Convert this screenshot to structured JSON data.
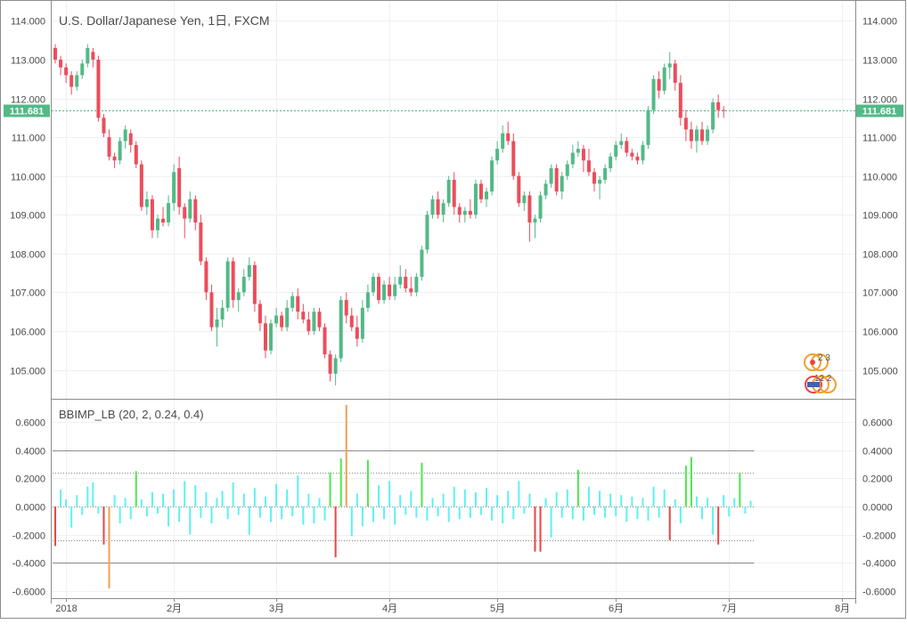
{
  "chart_data": [
    {
      "type": "candlestick",
      "title": "U.S. Dollar/Japanese Yen, 1日, FXCM",
      "ylim": [
        104.3,
        114.4
      ],
      "y_ticks": [
        "114.000",
        "113.000",
        "112.000",
        "111.000",
        "110.000",
        "109.000",
        "108.000",
        "107.000",
        "106.000",
        "105.000"
      ],
      "y_tick_values": [
        114,
        113,
        112,
        111,
        110,
        109,
        108,
        107,
        106,
        105
      ],
      "x_tick_labels": [
        "2018",
        "2月",
        "3月",
        "4月",
        "5月",
        "6月",
        "7月",
        "8月"
      ],
      "x_tick_bar_index": [
        2,
        22,
        41,
        62,
        82,
        104,
        125,
        146
      ],
      "last_price": 111.681,
      "last_price_label": "111.681",
      "colors": {
        "up": "#53b987",
        "down": "#eb4d5c",
        "price_line": "#53b987"
      },
      "series": [
        {
          "o": 113.3,
          "h": 113.4,
          "l": 112.9,
          "c": 113.0
        },
        {
          "o": 113.0,
          "h": 113.1,
          "l": 112.6,
          "c": 112.8
        },
        {
          "o": 112.8,
          "h": 112.9,
          "l": 112.4,
          "c": 112.6
        },
        {
          "o": 112.6,
          "h": 112.7,
          "l": 112.1,
          "c": 112.3
        },
        {
          "o": 112.3,
          "h": 112.7,
          "l": 112.2,
          "c": 112.6
        },
        {
          "o": 112.6,
          "h": 113.0,
          "l": 112.5,
          "c": 112.9
        },
        {
          "o": 112.9,
          "h": 113.4,
          "l": 112.8,
          "c": 113.3
        },
        {
          "o": 113.2,
          "h": 113.3,
          "l": 112.8,
          "c": 113.0
        },
        {
          "o": 113.0,
          "h": 113.1,
          "l": 111.4,
          "c": 111.5
        },
        {
          "o": 111.5,
          "h": 111.6,
          "l": 111.0,
          "c": 111.1
        },
        {
          "o": 111.0,
          "h": 111.2,
          "l": 110.4,
          "c": 110.5
        },
        {
          "o": 110.5,
          "h": 110.6,
          "l": 110.2,
          "c": 110.4
        },
        {
          "o": 110.4,
          "h": 111.0,
          "l": 110.3,
          "c": 110.9
        },
        {
          "o": 110.9,
          "h": 111.3,
          "l": 110.7,
          "c": 111.2
        },
        {
          "o": 111.1,
          "h": 111.2,
          "l": 110.6,
          "c": 110.8
        },
        {
          "o": 110.8,
          "h": 110.9,
          "l": 110.2,
          "c": 110.3
        },
        {
          "o": 110.3,
          "h": 110.4,
          "l": 109.1,
          "c": 109.2
        },
        {
          "o": 109.2,
          "h": 109.6,
          "l": 109.0,
          "c": 109.4
        },
        {
          "o": 109.4,
          "h": 109.5,
          "l": 108.4,
          "c": 108.6
        },
        {
          "o": 108.6,
          "h": 109.0,
          "l": 108.4,
          "c": 108.9
        },
        {
          "o": 108.9,
          "h": 109.2,
          "l": 108.7,
          "c": 108.8
        },
        {
          "o": 108.8,
          "h": 109.5,
          "l": 108.7,
          "c": 109.3
        },
        {
          "o": 109.3,
          "h": 110.3,
          "l": 109.1,
          "c": 110.1
        },
        {
          "o": 110.2,
          "h": 110.5,
          "l": 109.0,
          "c": 109.2
        },
        {
          "o": 109.2,
          "h": 109.3,
          "l": 108.4,
          "c": 108.9
        },
        {
          "o": 108.9,
          "h": 109.6,
          "l": 108.8,
          "c": 109.4
        },
        {
          "o": 109.4,
          "h": 109.5,
          "l": 108.6,
          "c": 108.8
        },
        {
          "o": 108.8,
          "h": 109.0,
          "l": 107.7,
          "c": 107.8
        },
        {
          "o": 107.8,
          "h": 107.9,
          "l": 106.8,
          "c": 107.0
        },
        {
          "o": 107.0,
          "h": 107.2,
          "l": 106.0,
          "c": 106.1
        },
        {
          "o": 106.1,
          "h": 106.6,
          "l": 105.6,
          "c": 106.3
        },
        {
          "o": 106.3,
          "h": 106.8,
          "l": 106.1,
          "c": 106.6
        },
        {
          "o": 106.6,
          "h": 107.9,
          "l": 106.5,
          "c": 107.8
        },
        {
          "o": 107.8,
          "h": 107.9,
          "l": 106.6,
          "c": 106.8
        },
        {
          "o": 106.8,
          "h": 107.1,
          "l": 106.5,
          "c": 107.0
        },
        {
          "o": 107.0,
          "h": 107.6,
          "l": 106.9,
          "c": 107.4
        },
        {
          "o": 107.4,
          "h": 107.9,
          "l": 107.3,
          "c": 107.7
        },
        {
          "o": 107.7,
          "h": 107.8,
          "l": 106.5,
          "c": 106.7
        },
        {
          "o": 106.7,
          "h": 106.8,
          "l": 106.0,
          "c": 106.2
        },
        {
          "o": 106.2,
          "h": 106.4,
          "l": 105.3,
          "c": 105.5
        },
        {
          "o": 105.5,
          "h": 106.3,
          "l": 105.4,
          "c": 106.2
        },
        {
          "o": 106.2,
          "h": 106.6,
          "l": 106.1,
          "c": 106.4
        },
        {
          "o": 106.4,
          "h": 106.5,
          "l": 106.0,
          "c": 106.1
        },
        {
          "o": 106.1,
          "h": 106.8,
          "l": 106.0,
          "c": 106.6
        },
        {
          "o": 106.6,
          "h": 107.0,
          "l": 106.5,
          "c": 106.9
        },
        {
          "o": 106.9,
          "h": 107.1,
          "l": 106.3,
          "c": 106.5
        },
        {
          "o": 106.5,
          "h": 106.7,
          "l": 106.2,
          "c": 106.3
        },
        {
          "o": 106.3,
          "h": 106.5,
          "l": 105.9,
          "c": 106.0
        },
        {
          "o": 106.0,
          "h": 106.6,
          "l": 105.9,
          "c": 106.5
        },
        {
          "o": 106.5,
          "h": 106.6,
          "l": 106.0,
          "c": 106.1
        },
        {
          "o": 106.1,
          "h": 106.2,
          "l": 105.3,
          "c": 105.4
        },
        {
          "o": 105.4,
          "h": 105.5,
          "l": 104.7,
          "c": 104.9
        },
        {
          "o": 104.9,
          "h": 105.4,
          "l": 104.6,
          "c": 105.3
        },
        {
          "o": 105.3,
          "h": 106.9,
          "l": 105.2,
          "c": 106.8
        },
        {
          "o": 106.8,
          "h": 107.0,
          "l": 106.2,
          "c": 106.4
        },
        {
          "o": 106.4,
          "h": 106.6,
          "l": 106.0,
          "c": 106.1
        },
        {
          "o": 106.1,
          "h": 106.4,
          "l": 105.6,
          "c": 105.8
        },
        {
          "o": 105.8,
          "h": 106.8,
          "l": 105.7,
          "c": 106.6
        },
        {
          "o": 106.6,
          "h": 107.2,
          "l": 106.5,
          "c": 107.0
        },
        {
          "o": 107.0,
          "h": 107.5,
          "l": 106.9,
          "c": 107.4
        },
        {
          "o": 107.4,
          "h": 107.5,
          "l": 106.7,
          "c": 106.8
        },
        {
          "o": 106.8,
          "h": 107.3,
          "l": 106.7,
          "c": 107.2
        },
        {
          "o": 107.2,
          "h": 107.4,
          "l": 106.8,
          "c": 106.9
        },
        {
          "o": 106.9,
          "h": 107.4,
          "l": 106.8,
          "c": 107.2
        },
        {
          "o": 107.2,
          "h": 107.7,
          "l": 107.1,
          "c": 107.4
        },
        {
          "o": 107.4,
          "h": 107.6,
          "l": 107.0,
          "c": 107.1
        },
        {
          "o": 107.1,
          "h": 107.4,
          "l": 106.9,
          "c": 107.0
        },
        {
          "o": 107.0,
          "h": 107.5,
          "l": 106.9,
          "c": 107.4
        },
        {
          "o": 107.4,
          "h": 108.2,
          "l": 107.3,
          "c": 108.1
        },
        {
          "o": 108.1,
          "h": 109.1,
          "l": 108.0,
          "c": 109.0
        },
        {
          "o": 109.0,
          "h": 109.5,
          "l": 108.9,
          "c": 109.4
        },
        {
          "o": 109.4,
          "h": 109.6,
          "l": 108.9,
          "c": 109.0
        },
        {
          "o": 109.0,
          "h": 109.4,
          "l": 108.8,
          "c": 109.3
        },
        {
          "o": 109.3,
          "h": 110.0,
          "l": 109.2,
          "c": 109.9
        },
        {
          "o": 109.9,
          "h": 110.1,
          "l": 109.0,
          "c": 109.2
        },
        {
          "o": 109.2,
          "h": 109.3,
          "l": 108.8,
          "c": 109.0
        },
        {
          "o": 109.0,
          "h": 109.2,
          "l": 108.8,
          "c": 109.1
        },
        {
          "o": 109.1,
          "h": 109.4,
          "l": 108.9,
          "c": 109.0
        },
        {
          "o": 109.0,
          "h": 109.9,
          "l": 108.9,
          "c": 109.8
        },
        {
          "o": 109.8,
          "h": 109.9,
          "l": 109.3,
          "c": 109.4
        },
        {
          "o": 109.4,
          "h": 109.7,
          "l": 109.2,
          "c": 109.6
        },
        {
          "o": 109.6,
          "h": 110.5,
          "l": 109.5,
          "c": 110.4
        },
        {
          "o": 110.4,
          "h": 110.9,
          "l": 110.3,
          "c": 110.7
        },
        {
          "o": 110.7,
          "h": 111.3,
          "l": 110.6,
          "c": 111.1
        },
        {
          "o": 111.1,
          "h": 111.4,
          "l": 110.8,
          "c": 110.9
        },
        {
          "o": 110.9,
          "h": 111.1,
          "l": 109.9,
          "c": 110.0
        },
        {
          "o": 110.0,
          "h": 110.1,
          "l": 109.2,
          "c": 109.3
        },
        {
          "o": 109.3,
          "h": 109.6,
          "l": 109.1,
          "c": 109.5
        },
        {
          "o": 109.5,
          "h": 109.6,
          "l": 108.3,
          "c": 108.8
        },
        {
          "o": 108.8,
          "h": 109.0,
          "l": 108.4,
          "c": 108.9
        },
        {
          "o": 108.9,
          "h": 109.6,
          "l": 108.8,
          "c": 109.5
        },
        {
          "o": 109.5,
          "h": 109.9,
          "l": 109.4,
          "c": 109.8
        },
        {
          "o": 109.8,
          "h": 110.3,
          "l": 109.7,
          "c": 110.2
        },
        {
          "o": 110.2,
          "h": 110.3,
          "l": 109.5,
          "c": 109.6
        },
        {
          "o": 109.6,
          "h": 110.1,
          "l": 109.4,
          "c": 110.0
        },
        {
          "o": 110.0,
          "h": 110.4,
          "l": 109.9,
          "c": 110.3
        },
        {
          "o": 110.3,
          "h": 110.8,
          "l": 110.2,
          "c": 110.6
        },
        {
          "o": 110.6,
          "h": 110.9,
          "l": 110.5,
          "c": 110.7
        },
        {
          "o": 110.7,
          "h": 110.8,
          "l": 110.1,
          "c": 110.4
        },
        {
          "o": 110.4,
          "h": 110.7,
          "l": 110.0,
          "c": 110.1
        },
        {
          "o": 110.1,
          "h": 110.2,
          "l": 109.6,
          "c": 109.8
        },
        {
          "o": 109.8,
          "h": 110.0,
          "l": 109.4,
          "c": 109.9
        },
        {
          "o": 109.9,
          "h": 110.3,
          "l": 109.8,
          "c": 110.2
        },
        {
          "o": 110.2,
          "h": 110.6,
          "l": 110.1,
          "c": 110.5
        },
        {
          "o": 110.5,
          "h": 110.9,
          "l": 110.4,
          "c": 110.8
        },
        {
          "o": 110.8,
          "h": 111.1,
          "l": 110.7,
          "c": 110.9
        },
        {
          "o": 110.9,
          "h": 111.0,
          "l": 110.5,
          "c": 110.6
        },
        {
          "o": 110.6,
          "h": 110.7,
          "l": 110.4,
          "c": 110.5
        },
        {
          "o": 110.5,
          "h": 110.6,
          "l": 110.3,
          "c": 110.4
        },
        {
          "o": 110.4,
          "h": 110.9,
          "l": 110.3,
          "c": 110.8
        },
        {
          "o": 110.8,
          "h": 111.8,
          "l": 110.7,
          "c": 111.7
        },
        {
          "o": 111.7,
          "h": 112.6,
          "l": 111.6,
          "c": 112.5
        },
        {
          "o": 112.5,
          "h": 112.7,
          "l": 112.0,
          "c": 112.2
        },
        {
          "o": 112.2,
          "h": 112.9,
          "l": 112.1,
          "c": 112.8
        },
        {
          "o": 112.8,
          "h": 113.2,
          "l": 112.5,
          "c": 112.9
        },
        {
          "o": 112.9,
          "h": 113.0,
          "l": 112.2,
          "c": 112.4
        },
        {
          "o": 112.4,
          "h": 112.6,
          "l": 111.3,
          "c": 111.5
        },
        {
          "o": 111.5,
          "h": 111.7,
          "l": 110.9,
          "c": 111.2
        },
        {
          "o": 111.2,
          "h": 111.4,
          "l": 110.7,
          "c": 110.9
        },
        {
          "o": 110.9,
          "h": 111.3,
          "l": 110.6,
          "c": 111.2
        },
        {
          "o": 111.2,
          "h": 111.4,
          "l": 110.8,
          "c": 110.9
        },
        {
          "o": 110.9,
          "h": 111.3,
          "l": 110.8,
          "c": 111.2
        },
        {
          "o": 111.2,
          "h": 112.0,
          "l": 111.1,
          "c": 111.9
        },
        {
          "o": 111.9,
          "h": 112.1,
          "l": 111.5,
          "c": 111.7
        },
        {
          "o": 111.7,
          "h": 111.8,
          "l": 111.5,
          "c": 111.681
        }
      ]
    },
    {
      "type": "bar",
      "title": "BBIMP_LB (20, 2, 0.24, 0.4)",
      "ylim": [
        -0.65,
        0.75
      ],
      "y_ticks": [
        "0.6000",
        "0.4000",
        "0.2000",
        "0.0000",
        "-0.2000",
        "-0.4000",
        "-0.6000"
      ],
      "y_tick_values": [
        0.6,
        0.4,
        0.2,
        0,
        -0.2,
        -0.4,
        -0.6
      ],
      "reference_lines": [
        0.4,
        -0.4
      ],
      "threshold_lines": [
        0.24,
        0,
        -0.24
      ],
      "colors": {
        "normal": "#5cf2f2",
        "high": "#4de84d",
        "low": "#e84545",
        "extreme": "#f0a050"
      },
      "values": [
        -0.28,
        0.12,
        0.05,
        -0.15,
        0.08,
        -0.06,
        0.14,
        0.17,
        -0.05,
        -0.27,
        -0.58,
        0.08,
        -0.12,
        0.06,
        -0.09,
        0.25,
        0.05,
        -0.07,
        0.1,
        -0.05,
        0.09,
        -0.14,
        0.12,
        -0.11,
        0.18,
        -0.2,
        0.15,
        -0.08,
        0.1,
        -0.12,
        0.06,
        0.11,
        -0.09,
        0.17,
        -0.06,
        0.09,
        -0.2,
        0.13,
        -0.08,
        0.07,
        -0.11,
        0.16,
        -0.09,
        0.12,
        -0.07,
        0.22,
        -0.13,
        0.09,
        -0.12,
        0.06,
        -0.1,
        0.24,
        -0.36,
        0.34,
        0.72,
        -0.21,
        0.09,
        -0.14,
        0.33,
        -0.11,
        0.15,
        -0.09,
        0.18,
        -0.13,
        0.08,
        -0.06,
        0.11,
        -0.08,
        0.31,
        -0.1,
        0.06,
        -0.07,
        0.09,
        -0.11,
        0.14,
        -0.09,
        0.12,
        -0.08,
        0.1,
        -0.06,
        0.13,
        -0.1,
        0.08,
        -0.12,
        0.11,
        -0.09,
        0.18,
        -0.05,
        0.09,
        -0.32,
        -0.32,
        0.06,
        -0.22,
        0.1,
        -0.08,
        0.12,
        -0.09,
        0.26,
        -0.1,
        0.14,
        -0.06,
        0.11,
        -0.08,
        0.09,
        -0.07,
        0.08,
        -0.11,
        0.07,
        -0.09,
        0.06,
        -0.1,
        0.14,
        -0.08,
        0.12,
        -0.24,
        0.05,
        -0.12,
        0.29,
        0.35,
        0.07,
        -0.09,
        0.06,
        -0.2,
        -0.27,
        0.08,
        -0.07,
        0.06,
        0.24,
        -0.05,
        0.04
      ]
    }
  ],
  "watermark_badges": {
    "top": "2 3",
    "bottom": "12 2"
  }
}
